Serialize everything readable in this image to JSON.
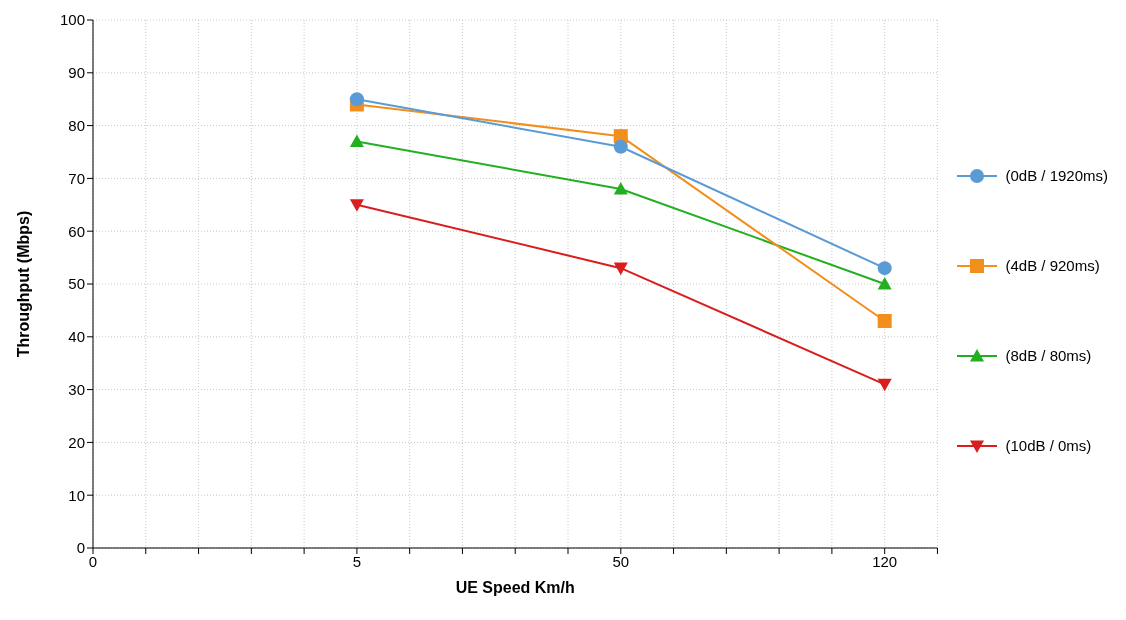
{
  "chart_data": {
    "type": "line",
    "xlabel": "UE Speed Km/h",
    "ylabel": "Throughput (Mbps)",
    "categories": [
      "0",
      "5",
      "50",
      "120"
    ],
    "ylim": [
      0,
      100
    ],
    "yticks": [
      0,
      10,
      20,
      30,
      40,
      50,
      60,
      70,
      80,
      90,
      100
    ],
    "grid": true,
    "legend": "right",
    "series": [
      {
        "name": "(0dB / 1920ms)",
        "color": "#5b9bd5",
        "marker": "circle",
        "values": [
          null,
          85,
          76,
          53
        ]
      },
      {
        "name": "(4dB / 920ms)",
        "color": "#f28e1c",
        "marker": "square",
        "values": [
          null,
          84,
          78,
          43
        ]
      },
      {
        "name": "(8dB / 80ms)",
        "color": "#22b022",
        "marker": "triangle",
        "values": [
          null,
          77,
          68,
          50
        ]
      },
      {
        "name": "(10dB / 0ms)",
        "color": "#d81e1e",
        "marker": "triangle-down",
        "values": [
          null,
          65,
          53,
          31
        ]
      }
    ]
  }
}
